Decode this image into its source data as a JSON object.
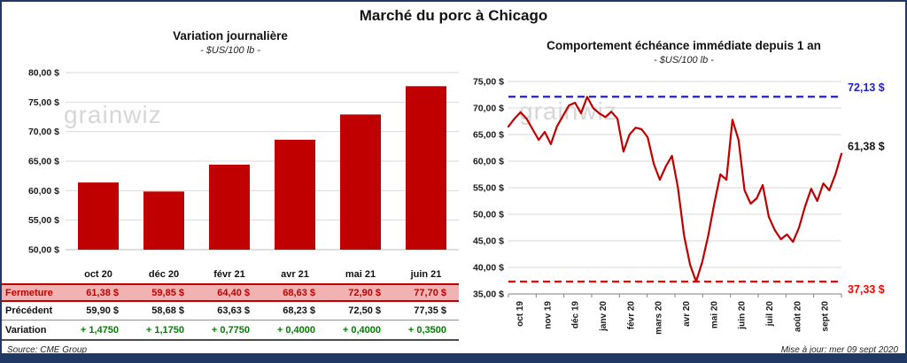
{
  "page": {
    "title": "Marché du porc à Chicago",
    "source": "Source: CME Group",
    "updated": "Mise à jour: mer 09 sept 2020",
    "watermark": "grainwiz"
  },
  "colors": {
    "accent_red": "#C00000",
    "ref_blue": "#2222CC",
    "ref_red": "#FF0000",
    "variation_green": "#008000",
    "navy": "#1F3864",
    "fermeture_bg": "#F3B2B2"
  },
  "table": {
    "rows": [
      {
        "label": "Fermeture",
        "values": [
          "61,38 $",
          "59,85 $",
          "64,40 $",
          "68,63 $",
          "72,90 $",
          "77,70 $"
        ]
      },
      {
        "label": "Précédent",
        "values": [
          "59,90 $",
          "58,68 $",
          "63,63 $",
          "68,23 $",
          "72,50 $",
          "77,35 $"
        ]
      },
      {
        "label": "Variation",
        "values": [
          "+ 1,4750",
          "+ 1,1750",
          "+ 0,7750",
          "+ 0,4000",
          "+ 0,4000",
          "+ 0,3500"
        ]
      }
    ]
  },
  "chart_data": [
    {
      "type": "bar",
      "title": "Variation journalière",
      "subtitle": "- $US/100 lb -",
      "categories": [
        "oct 20",
        "déc 20",
        "févr 21",
        "avr 21",
        "mai 21",
        "juin 21"
      ],
      "values": [
        61.38,
        59.85,
        64.4,
        68.63,
        72.9,
        77.7
      ],
      "ylim": [
        50,
        80
      ],
      "yticks": [
        50,
        55,
        60,
        65,
        70,
        75,
        80
      ],
      "ytick_labels": [
        "50,00 $",
        "55,00 $",
        "60,00 $",
        "65,00 $",
        "70,00 $",
        "75,00 $",
        "80,00 $"
      ],
      "bar_color": "#C00000",
      "grid": true,
      "legend": "none"
    },
    {
      "type": "line",
      "title": "Comportement échéance immédiate depuis 1 an",
      "subtitle": "- $US/100 lb -",
      "x_labels": [
        "oct 19",
        "nov 19",
        "déc 19",
        "janv 20",
        "févr 20",
        "mars 20",
        "avr 20",
        "mai 20",
        "juin 20",
        "juil 20",
        "août 20",
        "sept 20"
      ],
      "values": [
        66.5,
        68.0,
        69.2,
        68.0,
        66.0,
        64.0,
        65.5,
        63.2,
        66.5,
        68.5,
        70.5,
        71.0,
        69.0,
        72.1,
        70.0,
        69.0,
        68.3,
        69.3,
        68.0,
        61.8,
        65.0,
        66.3,
        66.0,
        64.5,
        59.5,
        56.5,
        59.0,
        61.0,
        55.0,
        46.0,
        40.5,
        37.33,
        41.0,
        46.0,
        52.0,
        57.5,
        56.5,
        67.8,
        64.0,
        54.5,
        52.0,
        53.0,
        55.5,
        49.5,
        47.0,
        45.3,
        46.2,
        44.8,
        47.5,
        51.5,
        54.8,
        52.5,
        55.8,
        54.5,
        57.5,
        61.38
      ],
      "ylim": [
        35,
        75
      ],
      "yticks": [
        35,
        40,
        45,
        50,
        55,
        60,
        65,
        70,
        75
      ],
      "ytick_labels": [
        "35,00 $",
        "40,00 $",
        "45,00 $",
        "50,00 $",
        "55,00 $",
        "60,00 $",
        "65,00 $",
        "70,00 $",
        "75,00 $"
      ],
      "line_color": "#C00000",
      "ref_lines": [
        {
          "value": 72.13,
          "label": "72,13 $",
          "color": "#2222CC",
          "style": "dashed",
          "label_pos": "above"
        },
        {
          "value": 37.33,
          "label": "37,33 $",
          "color": "#FF0000",
          "style": "dashed",
          "label_pos": "below"
        }
      ],
      "last_point": {
        "value": 61.38,
        "label": "61,38 $",
        "color": "#141414"
      },
      "grid": true,
      "legend": "none"
    }
  ]
}
